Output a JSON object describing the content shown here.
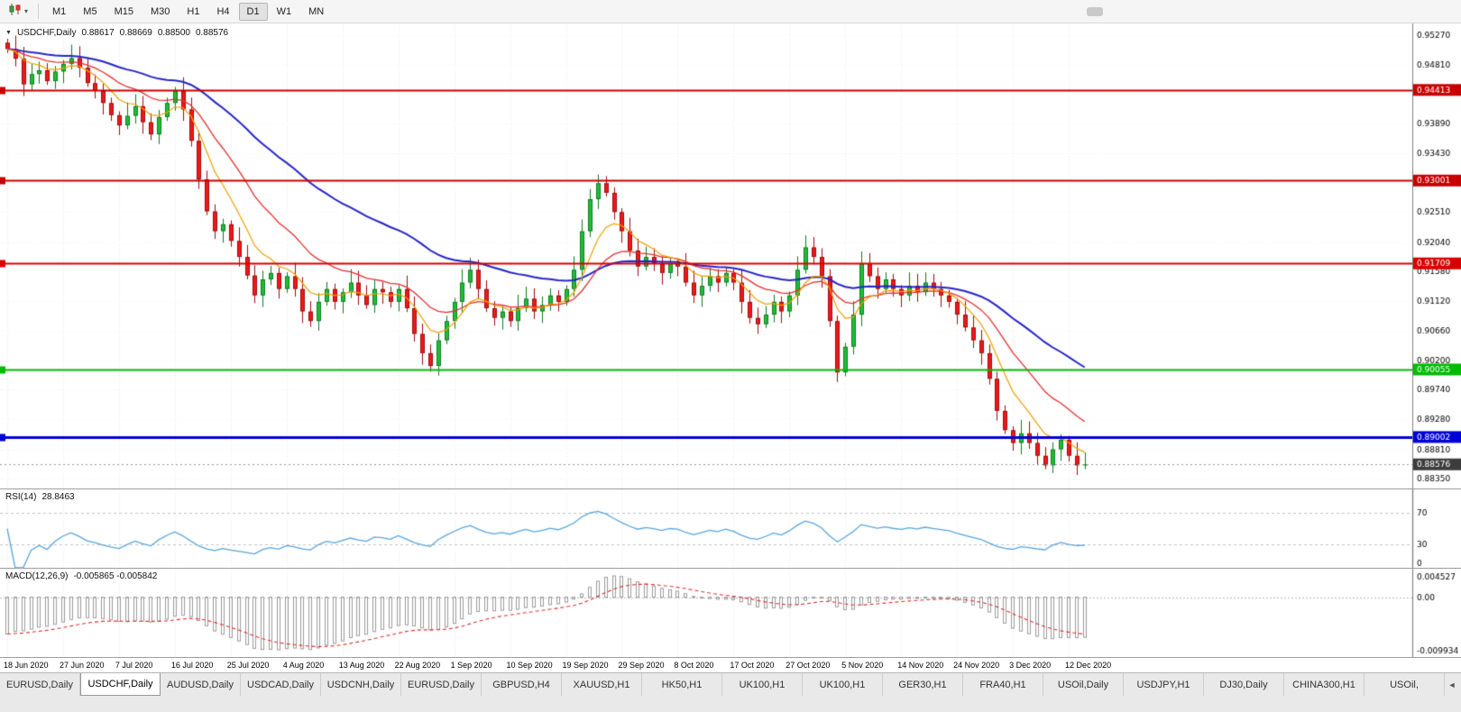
{
  "toolbar": {
    "timeframes": [
      "M1",
      "M5",
      "M15",
      "M30",
      "H1",
      "H4",
      "D1",
      "W1",
      "MN"
    ],
    "active_timeframe": "D1"
  },
  "chart": {
    "header": "USDCHF,Daily",
    "ohlc": {
      "open": "0.88617",
      "high": "0.88669",
      "low": "0.88500",
      "close": "0.88576"
    }
  },
  "chart_data": {
    "type": "candlestick",
    "symbol": "USDCHF",
    "period": "Daily",
    "title": "USDCHF,Daily 0.88617 0.88669 0.88500 0.88576",
    "first_open": 0.9515,
    "closes": [
      0.9505,
      0.949,
      0.945,
      0.9466,
      0.9472,
      0.9455,
      0.947,
      0.9482,
      0.9491,
      0.9476,
      0.9452,
      0.944,
      0.9421,
      0.9402,
      0.9386,
      0.9401,
      0.9416,
      0.9391,
      0.9372,
      0.9399,
      0.9421,
      0.944,
      0.9411,
      0.9362,
      0.9302,
      0.9252,
      0.9221,
      0.9232,
      0.9206,
      0.9181,
      0.9152,
      0.9121,
      0.9146,
      0.9156,
      0.9131,
      0.9151,
      0.9131,
      0.9096,
      0.9081,
      0.9111,
      0.9131,
      0.9111,
      0.9126,
      0.9141,
      0.9121,
      0.9106,
      0.9131,
      0.9126,
      0.9111,
      0.9131,
      0.9101,
      0.9061,
      0.9031,
      0.9011,
      0.9051,
      0.9081,
      0.9111,
      0.9141,
      0.9161,
      0.9131,
      0.9101,
      0.9086,
      0.9096,
      0.9081,
      0.9101,
      0.9116,
      0.9096,
      0.9106,
      0.9121,
      0.9111,
      0.9131,
      0.9161,
      0.9221,
      0.9271,
      0.9296,
      0.9281,
      0.9251,
      0.9221,
      0.9191,
      0.9166,
      0.9181,
      0.9171,
      0.9156,
      0.9171,
      0.9166,
      0.9141,
      0.9121,
      0.9136,
      0.9151,
      0.9141,
      0.9156,
      0.9141,
      0.9111,
      0.9086,
      0.9076,
      0.9091,
      0.9111,
      0.9096,
      0.9121,
      0.9161,
      0.9196,
      0.9181,
      0.9151,
      0.9081,
      0.9001,
      0.9041,
      0.9091,
      0.9171,
      0.9151,
      0.9131,
      0.9146,
      0.9131,
      0.9121,
      0.9136,
      0.9126,
      0.9141,
      0.9131,
      0.9121,
      0.9111,
      0.9091,
      0.9071,
      0.9051,
      0.9031,
      0.8991,
      0.8941,
      0.8911,
      0.8891,
      0.8906,
      0.8891,
      0.8871,
      0.8856,
      0.8881,
      0.8896,
      0.8871,
      0.8856,
      0.88576
    ],
    "price_axis": {
      "min": 0.882,
      "max": 0.9545,
      "grid": [
        0.9527,
        0.9481,
        0.9435,
        0.9389,
        0.9343,
        0.9297,
        0.9251,
        0.9204,
        0.9158,
        0.9112,
        0.9066,
        0.902,
        0.8974,
        0.8928,
        0.8881,
        0.8835
      ]
    },
    "hlines": [
      {
        "price": 0.94413,
        "color": "#c80000",
        "width": 2,
        "label": "0.94413"
      },
      {
        "price": 0.93001,
        "color": "#c80000",
        "width": 2,
        "label": "0.93001"
      },
      {
        "price": 0.91709,
        "color": "#d80000",
        "width": 2,
        "label": "0.91709"
      },
      {
        "price": 0.90055,
        "color": "#00bb00",
        "width": 2,
        "label": "0.90055"
      },
      {
        "price": 0.89002,
        "color": "#0000d8",
        "width": 3,
        "label": "0.89002"
      }
    ],
    "current_price": {
      "value": 0.88576,
      "label": "0.88576",
      "box_color": "#3c3c3c"
    },
    "moving_averages": [
      {
        "period": 40,
        "color": "#2525c8",
        "width": 2
      },
      {
        "period": 16,
        "color": "#e53030",
        "width": 1.3
      },
      {
        "period": 7,
        "color": "#f0a000",
        "width": 1.2
      }
    ],
    "candle_colors": {
      "up": "#1fbe34",
      "up_edge": "#0d7d20",
      "down": "#f01818",
      "down_edge": "#9e0d0d"
    },
    "date_labels": [
      {
        "i": 0,
        "t": "18 Jun 2020"
      },
      {
        "i": 7,
        "t": "27 Jun 2020"
      },
      {
        "i": 14,
        "t": "7 Jul 2020"
      },
      {
        "i": 21,
        "t": "16 Jul 2020"
      },
      {
        "i": 28,
        "t": "25 Jul 2020"
      },
      {
        "i": 35,
        "t": "4 Aug 2020"
      },
      {
        "i": 42,
        "t": "13 Aug 2020"
      },
      {
        "i": 49,
        "t": "22 Aug 2020"
      },
      {
        "i": 56,
        "t": "1 Sep 2020"
      },
      {
        "i": 63,
        "t": "10 Sep 2020"
      },
      {
        "i": 70,
        "t": "19 Sep 2020"
      },
      {
        "i": 77,
        "t": "29 Sep 2020"
      },
      {
        "i": 84,
        "t": "8 Oct 2020"
      },
      {
        "i": 91,
        "t": "17 Oct 2020"
      },
      {
        "i": 98,
        "t": "27 Oct 2020"
      },
      {
        "i": 105,
        "t": "5 Nov 2020"
      },
      {
        "i": 112,
        "t": "14 Nov 2020"
      },
      {
        "i": 119,
        "t": "24 Nov 2020"
      },
      {
        "i": 126,
        "t": "3 Dec 2020"
      },
      {
        "i": 133,
        "t": "12 Dec 2020"
      }
    ],
    "indicators": {
      "rsi": {
        "label": "RSI(14)",
        "value_text": "28.8463",
        "period": 14,
        "levels": [
          70,
          30
        ],
        "axis_labels": [
          "70",
          "30",
          "0"
        ],
        "color": "#58a6dd"
      },
      "macd": {
        "label": "MACD(12,26,9)",
        "value_text": "-0.005865 -0.005842",
        "fast": 12,
        "slow": 26,
        "signal": 9,
        "axis_top": "0.004527",
        "axis_zero": "0.00",
        "axis_bottom": "-0.009934",
        "histogram_color": "#9c9c9c",
        "signal_color": "#e03030"
      }
    }
  },
  "tabbar": {
    "tabs": [
      "EURUSD,Daily",
      "USDCHF,Daily",
      "AUDUSD,Daily",
      "USDCAD,Daily",
      "USDCNH,Daily",
      "EURUSD,Daily",
      "GBPUSD,H4",
      "XAUUSD,H1",
      "HK50,H1",
      "UK100,H1",
      "UK100,H1",
      "GER30,H1",
      "FRA40,H1",
      "USOil,Daily",
      "USDJPY,H1",
      "DJ30,Daily",
      "CHINA300,H1",
      "USOil,"
    ],
    "active_index": 1,
    "scroll_arrow": "◄"
  }
}
